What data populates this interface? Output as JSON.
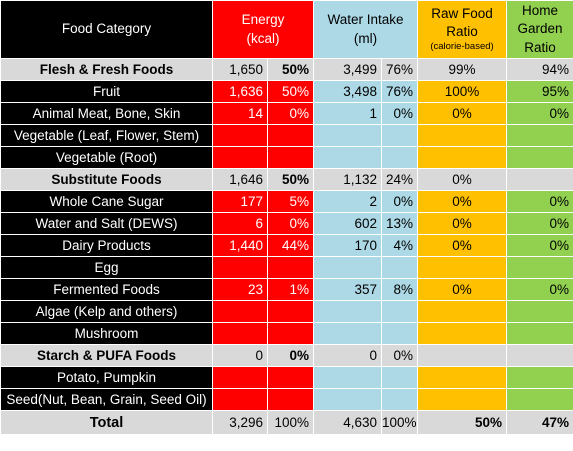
{
  "header": {
    "category": "Food Category",
    "energy_line1": "Energy",
    "energy_line2": "(kcal)",
    "water_line1": "Water Intake",
    "water_line2": "(ml)",
    "raw_line1": "Raw Food",
    "raw_line2": "Ratio",
    "raw_line3": "(calorie-based)",
    "garden_line1": "Home",
    "garden_line2": "Garden",
    "garden_line3": "Ratio"
  },
  "rows": [
    {
      "type": "group",
      "name": "Flesh & Fresh Foods",
      "energy": "1,650",
      "energy_pct": "50%",
      "water": "3,499",
      "water_pct": "76%",
      "raw": "99%",
      "garden": "94%"
    },
    {
      "type": "item",
      "name": "Fruit",
      "energy": "1,636",
      "energy_pct": "50%",
      "water": "3,498",
      "water_pct": "76%",
      "raw": "100%",
      "garden": "95%"
    },
    {
      "type": "item",
      "name": "Animal Meat, Bone, Skin",
      "energy": "14",
      "energy_pct": "0%",
      "water": "1",
      "water_pct": "0%",
      "raw": "0%",
      "garden": "0%"
    },
    {
      "type": "item",
      "name": "Vegetable (Leaf, Flower, Stem)",
      "energy": "",
      "energy_pct": "",
      "water": "",
      "water_pct": "",
      "raw": "",
      "garden": ""
    },
    {
      "type": "item",
      "name": "Vegetable (Root)",
      "energy": "",
      "energy_pct": "",
      "water": "",
      "water_pct": "",
      "raw": "",
      "garden": ""
    },
    {
      "type": "group",
      "name": "Substitute Foods",
      "energy": "1,646",
      "energy_pct": "50%",
      "water": "1,132",
      "water_pct": "24%",
      "raw": "0%",
      "garden": ""
    },
    {
      "type": "item",
      "name": "Whole Cane Sugar",
      "energy": "177",
      "energy_pct": "5%",
      "water": "2",
      "water_pct": "0%",
      "raw": "0%",
      "garden": "0%"
    },
    {
      "type": "item",
      "name": "Water and Salt (DEWS)",
      "energy": "6",
      "energy_pct": "0%",
      "water": "602",
      "water_pct": "13%",
      "raw": "0%",
      "garden": "0%"
    },
    {
      "type": "item",
      "name": "Dairy Products",
      "energy": "1,440",
      "energy_pct": "44%",
      "water": "170",
      "water_pct": "4%",
      "raw": "0%",
      "garden": "0%"
    },
    {
      "type": "item",
      "name": "Egg",
      "energy": "",
      "energy_pct": "",
      "water": "",
      "water_pct": "",
      "raw": "",
      "garden": ""
    },
    {
      "type": "item",
      "name": "Fermented Foods",
      "energy": "23",
      "energy_pct": "1%",
      "water": "357",
      "water_pct": "8%",
      "raw": "0%",
      "garden": "0%"
    },
    {
      "type": "item",
      "name": "Algae (Kelp and others)",
      "energy": "",
      "energy_pct": "",
      "water": "",
      "water_pct": "",
      "raw": "",
      "garden": ""
    },
    {
      "type": "item",
      "name": "Mushroom",
      "energy": "",
      "energy_pct": "",
      "water": "",
      "water_pct": "",
      "raw": "",
      "garden": ""
    },
    {
      "type": "group",
      "name": "Starch & PUFA Foods",
      "energy": "0",
      "energy_pct": "0%",
      "water": "0",
      "water_pct": "0%",
      "raw": "",
      "garden": ""
    },
    {
      "type": "item",
      "name": "Potato, Pumpkin",
      "energy": "",
      "energy_pct": "",
      "water": "",
      "water_pct": "",
      "raw": "",
      "garden": ""
    },
    {
      "type": "item",
      "name": "Seed(Nut, Bean, Grain, Seed Oil)",
      "energy": "",
      "energy_pct": "",
      "water": "",
      "water_pct": "",
      "raw": "",
      "garden": ""
    }
  ],
  "total": {
    "name": "Total",
    "energy": "3,296",
    "energy_pct": "100%",
    "water": "4,630",
    "water_pct": "100%",
    "raw": "50%",
    "garden": "47%"
  },
  "colors": {
    "energy": "#ff0000",
    "water": "#add8e6",
    "raw": "#ffc000",
    "garden": "#92d050",
    "category": "#000000",
    "group_row": "#d9d9d9"
  }
}
